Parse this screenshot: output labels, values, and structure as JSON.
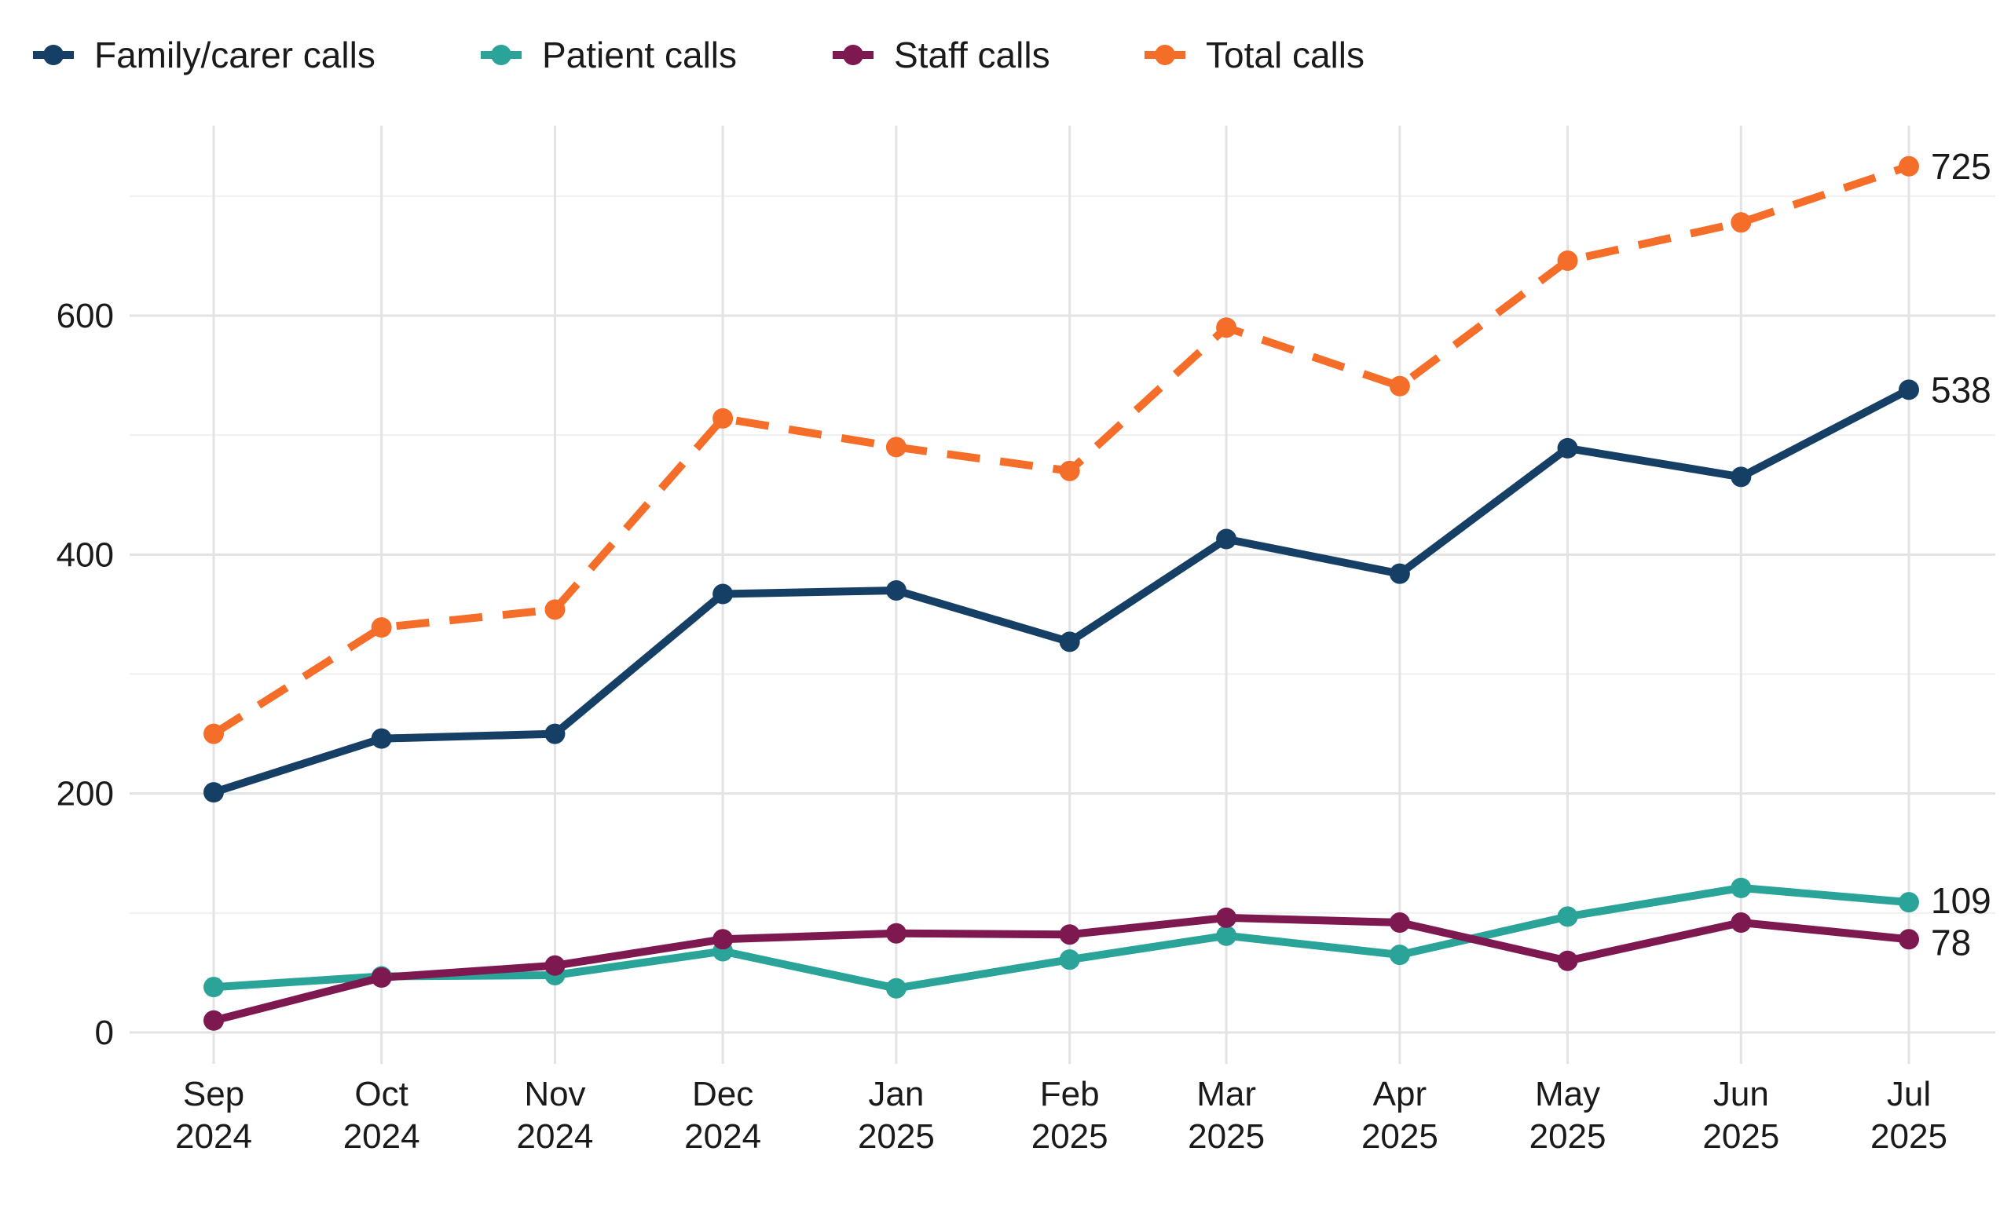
{
  "chart_data": {
    "type": "line",
    "title": "",
    "xlabel": "",
    "ylabel": "",
    "categories": [
      [
        "Sep",
        "2024"
      ],
      [
        "Oct",
        "2024"
      ],
      [
        "Nov",
        "2024"
      ],
      [
        "Dec",
        "2024"
      ],
      [
        "Jan",
        "2025"
      ],
      [
        "Feb",
        "2025"
      ],
      [
        "Mar",
        "2025"
      ],
      [
        "Apr",
        "2025"
      ],
      [
        "May",
        "2025"
      ],
      [
        "Jun",
        "2025"
      ],
      [
        "Jul",
        "2025"
      ]
    ],
    "x": [
      "2024-09-01",
      "2024-10-01",
      "2024-11-01",
      "2024-12-01",
      "2025-01-01",
      "2025-02-01",
      "2025-03-01",
      "2025-04-01",
      "2025-05-01",
      "2025-06-01",
      "2025-07-01"
    ],
    "ylim": [
      0,
      725
    ],
    "yticks": [
      0,
      200,
      400,
      600
    ],
    "grid": true,
    "legend_position": "top",
    "series": [
      {
        "name": "Family/carer calls",
        "color": "#163F66",
        "dash": "solid",
        "values": [
          201,
          246,
          250,
          367,
          370,
          327,
          413,
          384,
          489,
          465,
          538
        ],
        "end_label": "538"
      },
      {
        "name": "Patient calls",
        "color": "#2AA399",
        "dash": "solid",
        "values": [
          38,
          47,
          48,
          68,
          37,
          61,
          81,
          65,
          97,
          121,
          109
        ],
        "end_label": "109"
      },
      {
        "name": "Staff calls",
        "color": "#7D1850",
        "dash": "solid",
        "values": [
          10,
          46,
          56,
          78,
          83,
          82,
          96,
          92,
          60,
          92,
          78
        ],
        "end_label": "78"
      },
      {
        "name": "Total calls",
        "color": "#F46E2A",
        "dash": "dashed",
        "values": [
          250,
          339,
          354,
          514,
          490,
          470,
          590,
          541,
          646,
          678,
          725
        ],
        "end_label": "725"
      }
    ]
  }
}
